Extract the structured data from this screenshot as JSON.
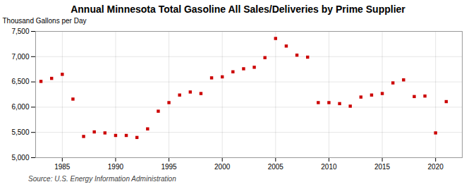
{
  "chart_data": {
    "type": "scatter",
    "title": "Annual Minnesota Total Gasoline All Sales/Deliveries by Prime Supplier",
    "ylabel": "Thousand Gallons per Day",
    "source": "Source: U.S. Energy Information Administration",
    "color": "#cc0000",
    "marker": "square",
    "grid": true,
    "xlim": [
      1982.5,
      2022.5
    ],
    "xticks": [
      1985,
      1990,
      1995,
      2000,
      2005,
      2010,
      2015,
      2020
    ],
    "ylim": [
      5000,
      7500
    ],
    "yticks": [
      {
        "value": 5000,
        "label": "5,000"
      },
      {
        "value": 5500,
        "label": "5,500"
      },
      {
        "value": 6000,
        "label": "6,000"
      },
      {
        "value": 6500,
        "label": "6,500"
      },
      {
        "value": 7000,
        "label": "7,000"
      },
      {
        "value": 7500,
        "label": "7,500"
      }
    ],
    "x": [
      1983,
      1984,
      1985,
      1986,
      1987,
      1988,
      1989,
      1990,
      1991,
      1992,
      1993,
      1994,
      1995,
      1996,
      1997,
      1998,
      1999,
      2000,
      2001,
      2002,
      2003,
      2004,
      2005,
      2006,
      2007,
      2008,
      2009,
      2010,
      2011,
      2012,
      2013,
      2014,
      2015,
      2016,
      2017,
      2018,
      2019,
      2020,
      2021
    ],
    "values": [
      6510,
      6570,
      6650,
      6160,
      5420,
      5510,
      5490,
      5440,
      5440,
      5400,
      5570,
      5920,
      6090,
      6240,
      6300,
      6270,
      6580,
      6600,
      6700,
      6760,
      6790,
      6980,
      7360,
      7210,
      7030,
      6990,
      6090,
      6090,
      6070,
      6020,
      6200,
      6240,
      6270,
      6480,
      6540,
      6210,
      6220,
      5490,
      6110
    ]
  }
}
